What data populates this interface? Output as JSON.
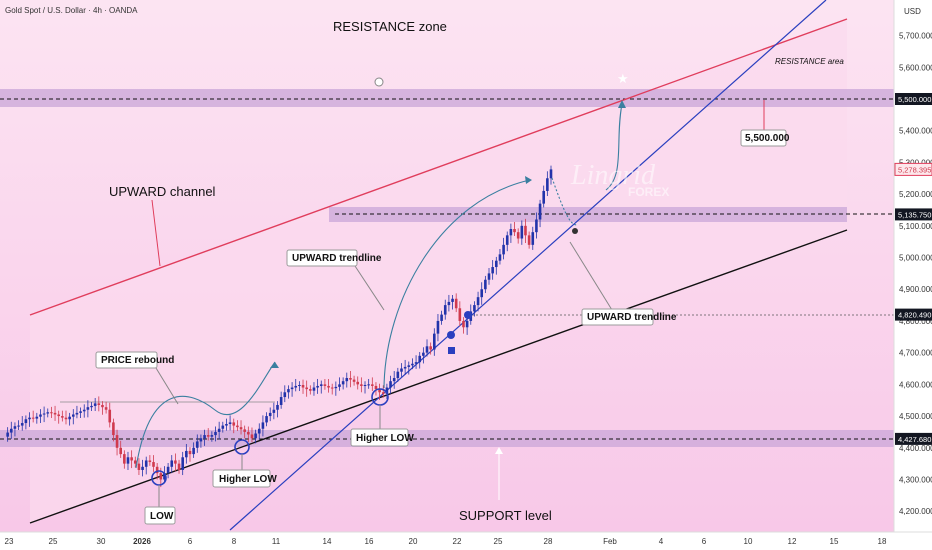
{
  "header": {
    "symbol": "Gold Spot / U.S. Dollar · 4h · OANDA",
    "currency": "USD"
  },
  "labels": {
    "resistance_zone": "RESISTANCE zone",
    "resistance_area": "RESISTANCE area",
    "upward_channel": "UPWARD channel",
    "upward_trendline_1": "UPWARD trendline",
    "upward_trendline_2": "UPWARD trendline",
    "price_rebound": "PRICE rebound",
    "higher_low_1": "Higher LOW",
    "higher_low_2": "Higher LOW",
    "low": "LOW",
    "support_level": "SUPPORT level",
    "target_5500": "5,500.000"
  },
  "watermark": {
    "brand": "Lingrid",
    "sub": "FOREX"
  },
  "colors": {
    "zone_purple": "#c9a6d8",
    "channel_fill": "#fbd9ee",
    "resistance_red": "#e03d5c",
    "trendline_blue": "#2a3fbf",
    "support_black": "#111111",
    "candle_blue": "#2233aa",
    "candle_red": "#d03a4e",
    "curve_teal": "#3a7fa0"
  },
  "chart_data": {
    "type": "candlestick",
    "instrument": "Gold Spot / U.S. Dollar",
    "timeframe": "4h",
    "y_axis": {
      "min": 4150,
      "max": 5800,
      "ticks": [
        "5,700.000",
        "5,600.000",
        "5,500.000",
        "5,400.000",
        "5,300.000",
        "5,200.000",
        "5,100.000",
        "5,000.000",
        "4,900.000",
        "4,800.000",
        "4,700.000",
        "4,600.000",
        "4,500.000",
        "4,400.000",
        "4,300.000",
        "4,200.000"
      ],
      "tick_values": [
        5700,
        5600,
        5500,
        5400,
        5300,
        5200,
        5100,
        5000,
        4900,
        4800,
        4700,
        4600,
        4500,
        4400,
        4300,
        4200
      ]
    },
    "x_axis_ticks": [
      "23",
      "25",
      "30",
      "2026",
      "6",
      "8",
      "11",
      "14",
      "16",
      "20",
      "22",
      "25",
      "28",
      "Feb",
      "4",
      "6",
      "10",
      "12",
      "15",
      "18"
    ],
    "price_badges": [
      {
        "value": "5,500.000",
        "price": 5500,
        "style": "dark"
      },
      {
        "value": "5,278.395",
        "price": 5278,
        "style": "red"
      },
      {
        "value": "5,135.750",
        "price": 5136,
        "style": "dark"
      },
      {
        "value": "4,820.490",
        "price": 4820,
        "style": "dark"
      },
      {
        "value": "4,427.680",
        "price": 4428,
        "style": "dark"
      }
    ],
    "zones": [
      {
        "name": "resistance",
        "from": 5470,
        "to": 5530
      },
      {
        "name": "mid",
        "from": 5100,
        "to": 5150
      },
      {
        "name": "support",
        "from": 4400,
        "to": 4450
      }
    ],
    "closes": [
      4435,
      4448,
      4460,
      4468,
      4470,
      4478,
      4490,
      4495,
      4492,
      4498,
      4505,
      4508,
      4512,
      4510,
      4505,
      4500,
      4495,
      4490,
      4498,
      4505,
      4510,
      4515,
      4520,
      4528,
      4532,
      4540,
      4535,
      4528,
      4520,
      4480,
      4440,
      4400,
      4380,
      4350,
      4370,
      4360,
      4350,
      4330,
      4340,
      4360,
      4355,
      4340,
      4320,
      4300,
      4320,
      4340,
      4360,
      4350,
      4330,
      4370,
      4390,
      4380,
      4400,
      4420,
      4430,
      4440,
      4435,
      4440,
      4450,
      4460,
      4470,
      4475,
      4480,
      4470,
      4465,
      4458,
      4450,
      4442,
      4430,
      4445,
      4460,
      4480,
      4500,
      4510,
      4520,
      4535,
      4560,
      4575,
      4585,
      4590,
      4595,
      4598,
      4590,
      4585,
      4580,
      4590,
      4595,
      4600,
      4595,
      4590,
      4588,
      4592,
      4600,
      4610,
      4620,
      4615,
      4608,
      4600,
      4595,
      4598,
      4600,
      4595,
      4585,
      4575,
      4570,
      4590,
      4610,
      4620,
      4640,
      4650,
      4655,
      4660,
      4665,
      4670,
      4690,
      4700,
      4720,
      4710,
      4760,
      4800,
      4820,
      4850,
      4860,
      4870,
      4840,
      4800,
      4780,
      4800,
      4830,
      4850,
      4875,
      4900,
      4930,
      4950,
      4970,
      4990,
      5010,
      5040,
      5070,
      5090,
      5080,
      5060,
      5100,
      5070,
      5040,
      5080,
      5120,
      5170,
      5210,
      5250,
      5278
    ]
  }
}
